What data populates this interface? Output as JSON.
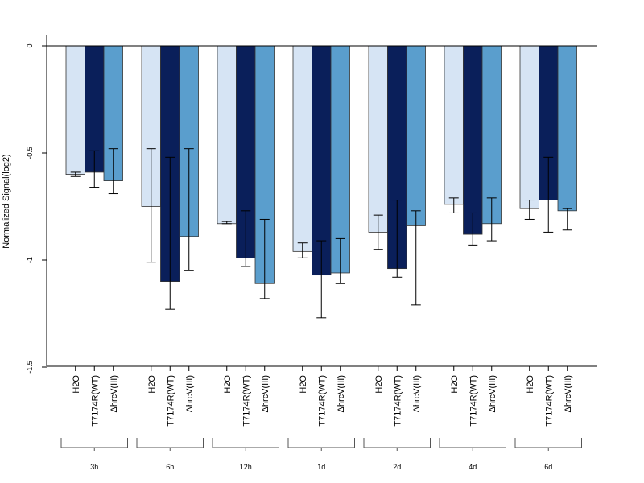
{
  "chart_data": {
    "type": "bar",
    "title": "",
    "xlabel": "",
    "ylabel": "Normalized Signal(log2)",
    "ylim": [
      -1.5,
      0.05
    ],
    "yticks": [
      0,
      -0.5,
      -1,
      -1.5
    ],
    "ytick_labels": [
      "0",
      "-0.5",
      "-1",
      "-1.5"
    ],
    "groups": [
      "3h",
      "6h",
      "12h",
      "1d",
      "2d",
      "4d",
      "6d"
    ],
    "conditions": [
      "H2O",
      "T7174R(WT)",
      "ΔhrcV(III)"
    ],
    "colors": [
      "#d6e4f4",
      "#0a1f5a",
      "#5a9ecd"
    ],
    "series": [
      {
        "name": "H2O",
        "values": [
          -0.6,
          -0.75,
          -0.83,
          -0.96,
          -0.87,
          -0.74,
          -0.76
        ],
        "err_low": [
          -0.61,
          -1.01,
          -0.83,
          -0.99,
          -0.95,
          -0.78,
          -0.81
        ],
        "err_high": [
          -0.59,
          -0.48,
          -0.82,
          -0.92,
          -0.79,
          -0.71,
          -0.72
        ]
      },
      {
        "name": "T7174R(WT)",
        "values": [
          -0.59,
          -1.1,
          -0.99,
          -1.07,
          -1.04,
          -0.88,
          -0.72
        ],
        "err_low": [
          -0.66,
          -1.23,
          -1.03,
          -1.27,
          -1.08,
          -0.93,
          -0.87
        ],
        "err_high": [
          -0.49,
          -0.52,
          -0.77,
          -0.91,
          -0.72,
          -0.78,
          -0.52
        ]
      },
      {
        "name": "ΔhrcV(III)",
        "values": [
          -0.63,
          -0.89,
          -1.11,
          -1.06,
          -0.84,
          -0.83,
          -0.77
        ],
        "err_low": [
          -0.69,
          -1.05,
          -1.18,
          -1.11,
          -1.21,
          -0.91,
          -0.86
        ],
        "err_high": [
          -0.48,
          -0.48,
          -0.81,
          -0.9,
          -0.77,
          -0.71,
          -0.76
        ]
      }
    ]
  }
}
